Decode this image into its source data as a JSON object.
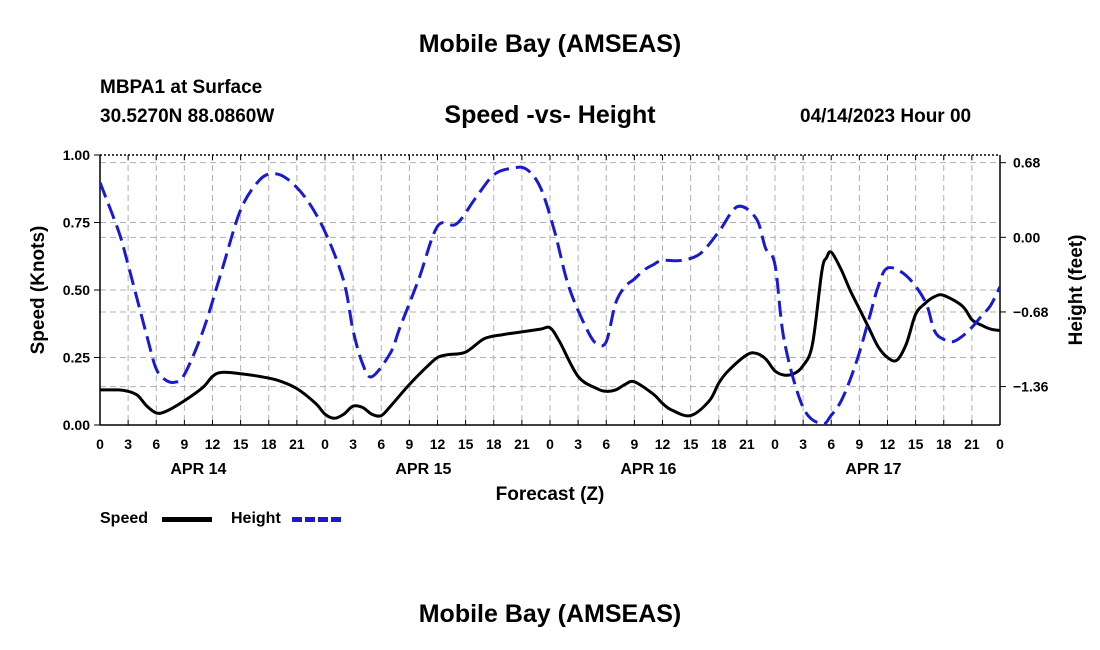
{
  "header": {
    "title": "Mobile Bay (AMSEAS)",
    "station": "MBPA1 at Surface",
    "coords": "30.5270N  88.0860W",
    "plot_title": "Speed -vs- Height",
    "datetime": "04/14/2023 Hour 00"
  },
  "footer": {
    "title": "Mobile Bay (AMSEAS)"
  },
  "legend": {
    "speed": "Speed",
    "height": "Height"
  },
  "colors": {
    "speed": "#000000",
    "height": "#1a1ad0",
    "grid": "#b0b0b0"
  },
  "chart_data": {
    "type": "line",
    "title": "Speed -vs- Height",
    "xlabel": "Forecast (Z)",
    "ylabel": "Speed (Knots)",
    "y2label": "Height (feet)",
    "xlim": [
      0,
      96
    ],
    "ylim": [
      0,
      1
    ],
    "y2lim": [
      -1.71,
      0.75
    ],
    "x_tick_labels": [
      "0",
      "3",
      "6",
      "9",
      "12",
      "15",
      "18",
      "21",
      "0",
      "3",
      "6",
      "9",
      "12",
      "15",
      "18",
      "21",
      "0",
      "3",
      "6",
      "9",
      "12",
      "15",
      "18",
      "21",
      "0",
      "3",
      "6",
      "9",
      "12",
      "15",
      "18",
      "21",
      "0"
    ],
    "date_labels": [
      {
        "x": 9,
        "label": "APR 14"
      },
      {
        "x": 33,
        "label": "APR 15"
      },
      {
        "x": 57,
        "label": "APR 16"
      },
      {
        "x": 81,
        "label": "APR 17"
      }
    ],
    "y_ticks": [
      {
        "value": 0,
        "label": "0.00"
      },
      {
        "value": 0.25,
        "label": "0.25"
      },
      {
        "value": 0.5,
        "label": "0.50"
      },
      {
        "value": 0.75,
        "label": "0.75"
      },
      {
        "value": 1.0,
        "label": "1.00"
      }
    ],
    "y2_ticks": [
      {
        "value": 0.68,
        "label": "0.68"
      },
      {
        "value": 0.0,
        "label": "0.00"
      },
      {
        "value": -0.68,
        "label": "−0.68"
      },
      {
        "value": -1.36,
        "label": "−1.36"
      }
    ],
    "series": [
      {
        "name": "Speed",
        "axis": "left",
        "color": "#000000",
        "dash": "solid",
        "x": [
          0,
          2,
          3,
          4,
          5,
          6,
          7,
          9,
          11,
          12,
          13,
          15,
          17,
          19,
          21,
          23,
          24,
          25,
          26,
          27,
          28,
          29,
          30,
          31,
          33,
          35,
          36,
          37,
          39,
          41,
          43,
          45,
          47,
          48,
          49,
          51,
          53,
          54,
          55,
          56,
          57,
          59,
          60,
          61,
          63,
          65,
          66,
          67,
          69,
          70,
          71,
          72,
          73,
          74,
          75,
          76,
          77,
          77.5,
          78,
          79,
          80,
          81,
          82,
          83,
          84,
          85,
          86,
          87,
          88,
          89,
          90,
          92,
          93,
          94,
          95,
          96
        ],
        "y": [
          0.13,
          0.13,
          0.125,
          0.11,
          0.07,
          0.045,
          0.05,
          0.09,
          0.14,
          0.18,
          0.195,
          0.19,
          0.18,
          0.165,
          0.135,
          0.08,
          0.04,
          0.025,
          0.04,
          0.07,
          0.065,
          0.04,
          0.035,
          0.07,
          0.15,
          0.22,
          0.25,
          0.26,
          0.27,
          0.32,
          0.335,
          0.345,
          0.355,
          0.36,
          0.31,
          0.18,
          0.135,
          0.125,
          0.13,
          0.15,
          0.16,
          0.115,
          0.08,
          0.055,
          0.035,
          0.09,
          0.155,
          0.2,
          0.26,
          0.265,
          0.245,
          0.2,
          0.185,
          0.19,
          0.22,
          0.3,
          0.57,
          0.62,
          0.64,
          0.58,
          0.5,
          0.43,
          0.36,
          0.29,
          0.25,
          0.24,
          0.3,
          0.41,
          0.45,
          0.475,
          0.48,
          0.44,
          0.39,
          0.37,
          0.355,
          0.35
        ]
      },
      {
        "name": "Height",
        "axis": "right",
        "color": "#1a1ad0",
        "dash": "dashed",
        "x": [
          0,
          2,
          3,
          5,
          6,
          7,
          8,
          9,
          11,
          13,
          15,
          17,
          18.5,
          20,
          22,
          24,
          26,
          27,
          28,
          29,
          31,
          32,
          34,
          36,
          38,
          40,
          42,
          44,
          45.5,
          47,
          48.5,
          50,
          52,
          53,
          54,
          55,
          56,
          57,
          58,
          59,
          60,
          62,
          64,
          66,
          68,
          70,
          71,
          72,
          73,
          75,
          77,
          78,
          79,
          80,
          81,
          82,
          83,
          84,
          86,
          88,
          89,
          90,
          91,
          92,
          93,
          94,
          95,
          96
        ],
        "y": [
          0.5,
          0.05,
          -0.25,
          -0.9,
          -1.2,
          -1.3,
          -1.32,
          -1.25,
          -0.85,
          -0.3,
          0.25,
          0.52,
          0.58,
          0.53,
          0.35,
          0.05,
          -0.4,
          -0.85,
          -1.15,
          -1.27,
          -1.05,
          -0.82,
          -0.38,
          0.1,
          0.12,
          0.35,
          0.57,
          0.63,
          0.62,
          0.45,
          0.05,
          -0.45,
          -0.85,
          -0.97,
          -0.95,
          -0.6,
          -0.45,
          -0.38,
          -0.3,
          -0.25,
          -0.21,
          -0.21,
          -0.15,
          0.05,
          0.28,
          0.17,
          -0.1,
          -0.25,
          -0.95,
          -1.55,
          -1.7,
          -1.62,
          -1.5,
          -1.3,
          -1.05,
          -0.75,
          -0.45,
          -0.28,
          -0.35,
          -0.58,
          -0.85,
          -0.93,
          -0.95,
          -0.9,
          -0.82,
          -0.72,
          -0.62,
          -0.45
        ]
      }
    ]
  }
}
